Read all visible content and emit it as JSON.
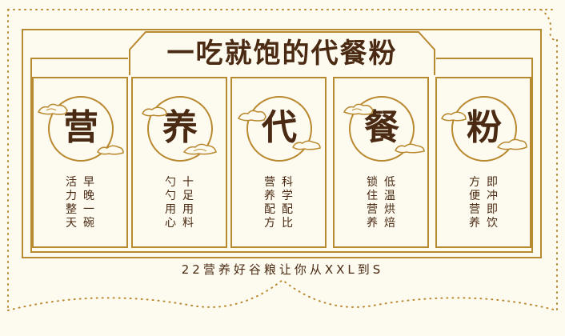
{
  "title": "一吃就饱的代餐粉",
  "subtitle": "22营养好谷粮让你从XXL到S",
  "colors": {
    "gold": "#b8892f",
    "brown": "#4a2a12",
    "background": "#fdfaf0"
  },
  "panels": [
    {
      "char": "营",
      "lines": [
        "早晚一碗",
        "活力整天"
      ]
    },
    {
      "char": "养",
      "lines": [
        "十足用料",
        "勺勺用心"
      ]
    },
    {
      "char": "代",
      "lines": [
        "科学配比",
        "营养配方"
      ]
    },
    {
      "char": "餐",
      "lines": [
        "低温烘焙",
        "锁住营养"
      ]
    },
    {
      "char": "粉",
      "lines": [
        "即冲即饮",
        "方便营养"
      ]
    }
  ]
}
